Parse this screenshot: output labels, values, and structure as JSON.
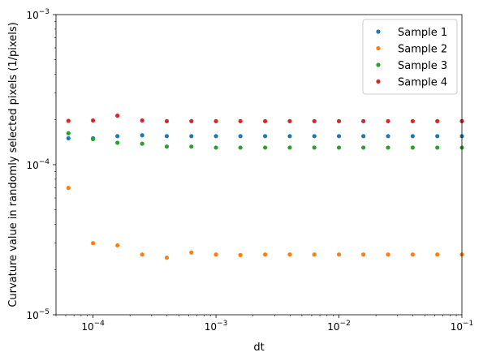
{
  "chart_data": {
    "type": "scatter",
    "xlabel": "dt",
    "ylabel": "Curvature value in randomly selected pixels (1/pixels)",
    "xscale": "log",
    "yscale": "log",
    "xlim": [
      5e-05,
      0.1
    ],
    "ylim": [
      1e-05,
      0.001
    ],
    "x_ticks": [
      {
        "value": 0.0001,
        "base": "10",
        "exp": "−4"
      },
      {
        "value": 0.001,
        "base": "10",
        "exp": "−3"
      },
      {
        "value": 0.01,
        "base": "10",
        "exp": "−2"
      },
      {
        "value": 0.1,
        "base": "10",
        "exp": "−1"
      }
    ],
    "y_ticks": [
      {
        "value": 1e-05,
        "base": "10",
        "exp": "−5"
      },
      {
        "value": 0.0001,
        "base": "10",
        "exp": "−4"
      },
      {
        "value": 0.001,
        "base": "10",
        "exp": "−3"
      }
    ],
    "legend_position": "top-right",
    "grid": false,
    "x": [
      6.31e-05,
      0.0001,
      0.000158,
      0.000251,
      0.000398,
      0.000631,
      0.001,
      0.00158,
      0.00251,
      0.00398,
      0.00631,
      0.01,
      0.0158,
      0.0251,
      0.0398,
      0.0631,
      0.1
    ],
    "series": [
      {
        "name": "Sample 1",
        "color": "#1f77b4",
        "values": [
          0.00015,
          0.00015,
          0.000155,
          0.000157,
          0.000155,
          0.000155,
          0.000155,
          0.000155,
          0.000155,
          0.000155,
          0.000155,
          0.000155,
          0.000155,
          0.000155,
          0.000155,
          0.000155,
          0.000155
        ]
      },
      {
        "name": "Sample 2",
        "color": "#ff7f0e",
        "values": [
          7e-05,
          3e-05,
          2.9e-05,
          2.52e-05,
          2.4e-05,
          2.6e-05,
          2.52e-05,
          2.5e-05,
          2.52e-05,
          2.52e-05,
          2.52e-05,
          2.52e-05,
          2.52e-05,
          2.52e-05,
          2.52e-05,
          2.52e-05,
          2.52e-05
        ]
      },
      {
        "name": "Sample 3",
        "color": "#2ca02c",
        "values": [
          0.000162,
          0.000148,
          0.00014,
          0.000138,
          0.000132,
          0.000132,
          0.00013,
          0.00013,
          0.00013,
          0.00013,
          0.00013,
          0.00013,
          0.00013,
          0.00013,
          0.00013,
          0.00013,
          0.00013
        ]
      },
      {
        "name": "Sample 4",
        "color": "#d62728",
        "values": [
          0.000196,
          0.000197,
          0.000212,
          0.000197,
          0.000195,
          0.000195,
          0.000195,
          0.000195,
          0.000195,
          0.000195,
          0.000195,
          0.000195,
          0.000195,
          0.000195,
          0.000195,
          0.000195,
          0.000195
        ]
      }
    ]
  }
}
